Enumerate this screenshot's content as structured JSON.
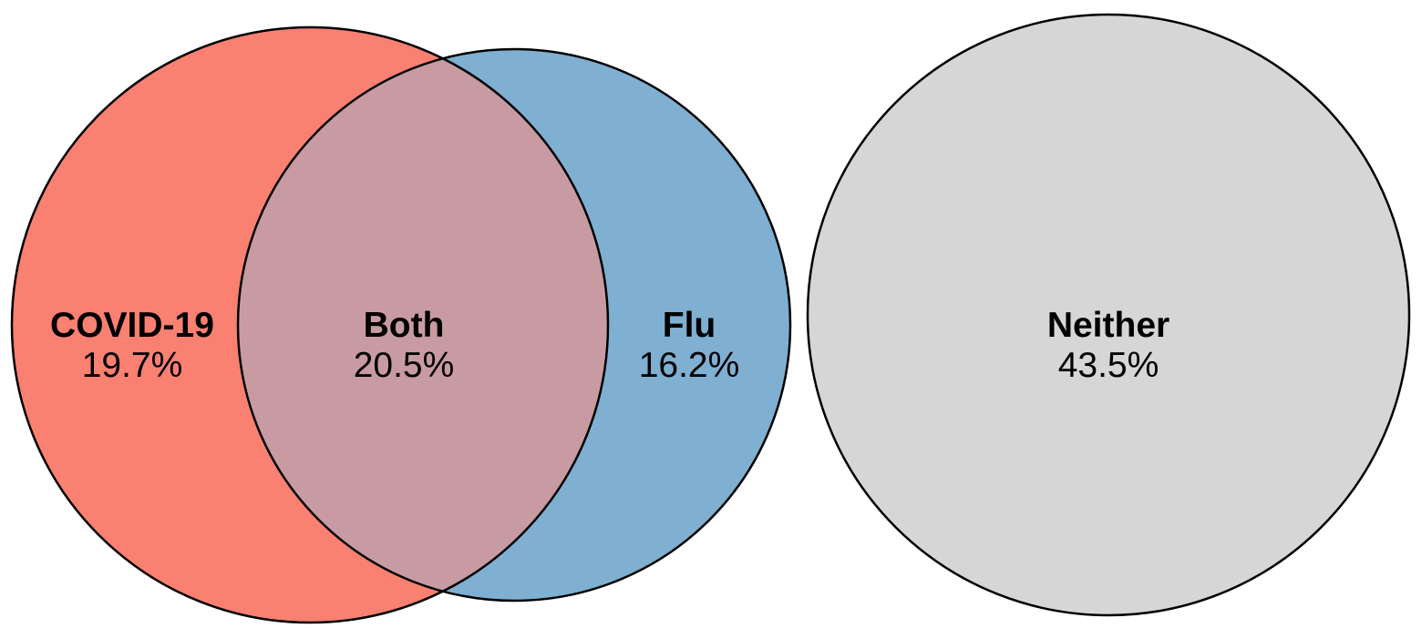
{
  "colors": {
    "covid": "#FA8072",
    "flu": "#7FAFD1",
    "both": "#C89BA2",
    "neither": "#D6D6D6",
    "outline": "#000000"
  },
  "chart_data": {
    "type": "venn",
    "sets": [
      {
        "key": "covid",
        "label": "COVID-19",
        "value": "19.7%",
        "percent": 19.7
      },
      {
        "key": "both",
        "label": "Both",
        "value": "20.5%",
        "percent": 20.5
      },
      {
        "key": "flu",
        "label": "Flu",
        "value": "16.2%",
        "percent": 16.2
      },
      {
        "key": "neither",
        "label": "Neither",
        "value": "43.5%",
        "percent": 43.5
      }
    ]
  }
}
